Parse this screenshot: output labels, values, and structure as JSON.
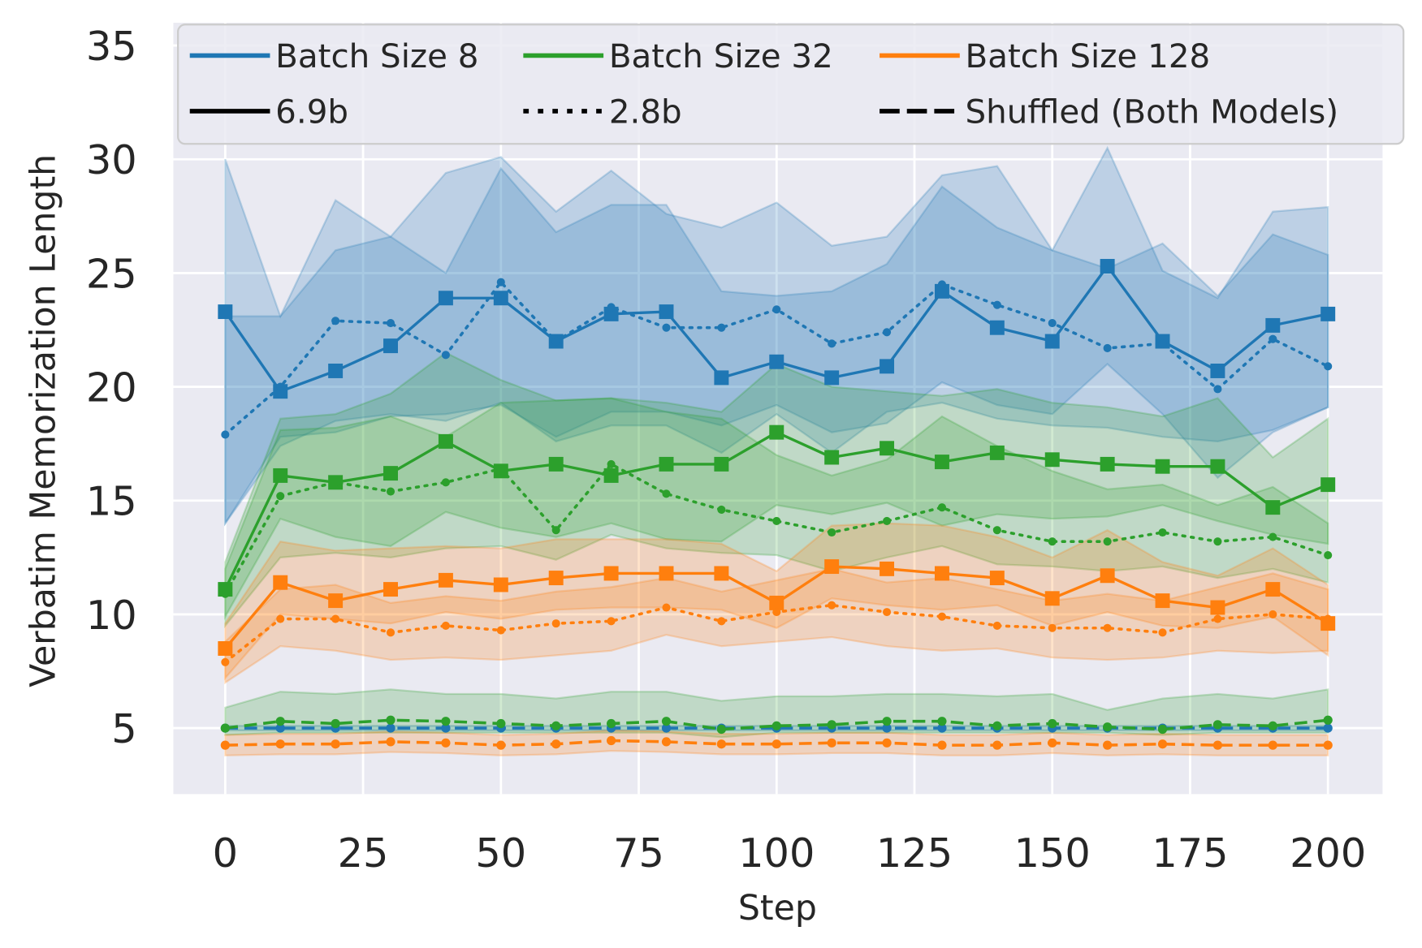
{
  "chart_data": {
    "type": "line",
    "title": "",
    "xlabel": "Step",
    "ylabel": "Verbatim Memorization Length",
    "xlim": [
      -9.4,
      209.9
    ],
    "ylim": [
      2.1,
      36
    ],
    "xticks": [
      "0",
      "25",
      "50",
      "75",
      "100",
      "125",
      "150",
      "175",
      "200"
    ],
    "yticks": [
      "5",
      "10",
      "15",
      "20",
      "25",
      "30",
      "35"
    ],
    "grid": true,
    "background": "#eaeaf2",
    "legend_position": "top",
    "legend": {
      "colors": [
        {
          "label": "Batch Size 8",
          "color": "#1f77b4"
        },
        {
          "label": "Batch Size 32",
          "color": "#2ca02c"
        },
        {
          "label": "Batch Size 128",
          "color": "#ff7f0e"
        }
      ],
      "styles": [
        {
          "label": "6.9b",
          "style": "solid"
        },
        {
          "label": "2.8b",
          "style": "dotted"
        },
        {
          "label": "Shuffled (Both Models)",
          "style": "dashed"
        }
      ]
    },
    "x": [
      0,
      10,
      20,
      30,
      40,
      50,
      60,
      70,
      80,
      90,
      100,
      110,
      120,
      130,
      140,
      150,
      160,
      170,
      180,
      190,
      200
    ],
    "series": [
      {
        "batch": "Batch Size 8",
        "model": "6.9b",
        "color": "#1f77b4",
        "style": "solid",
        "marker": "square",
        "values": [
          23.3,
          19.8,
          20.7,
          21.8,
          23.9,
          23.9,
          22.0,
          23.2,
          23.3,
          20.4,
          21.1,
          20.4,
          20.9,
          24.2,
          22.6,
          22.0,
          25.3,
          22.0,
          20.7,
          22.7,
          23.2
        ],
        "upper": [
          23.1,
          23.1,
          26,
          26.6,
          25,
          29.6,
          26.8,
          28,
          28,
          24.2,
          24,
          24.2,
          25.4,
          28.8,
          27,
          26,
          25.2,
          26.3,
          24,
          26.7,
          25.8
        ],
        "lower": [
          14,
          17.8,
          18,
          18.7,
          18.8,
          19.2,
          17.8,
          18.9,
          18.9,
          18.3,
          19.2,
          18,
          18.4,
          20.2,
          19.2,
          18.8,
          21,
          18.8,
          16,
          18,
          19.1
        ]
      },
      {
        "batch": "Batch Size 8",
        "model": "2.8b",
        "color": "#1f77b4",
        "style": "dotted",
        "marker": "circle",
        "values": [
          17.9,
          20.0,
          22.9,
          22.8,
          21.4,
          24.6,
          22.0,
          23.5,
          22.6,
          22.6,
          23.4,
          21.9,
          22.4,
          24.5,
          23.6,
          22.8,
          21.7,
          21.9,
          19.9,
          22.1,
          20.9
        ],
        "upper": [
          30,
          23.1,
          28.2,
          26.6,
          29.4,
          30.1,
          27.7,
          29.5,
          27.6,
          27,
          28.1,
          26.2,
          26.6,
          29.3,
          29.7,
          26,
          30.5,
          25.1,
          23.9,
          27.7,
          27.9
        ],
        "lower": [
          14,
          17.4,
          18.5,
          18.8,
          18.5,
          19.3,
          17.6,
          18.3,
          18.3,
          17.1,
          18.8,
          17.1,
          18.9,
          19.3,
          18.6,
          18.3,
          18.2,
          17.8,
          17.6,
          18.1,
          19.1
        ]
      },
      {
        "batch": "Batch Size 32",
        "model": "6.9b",
        "color": "#2ca02c",
        "style": "solid",
        "marker": "square",
        "values": [
          11.1,
          16.1,
          15.8,
          16.2,
          17.6,
          16.3,
          16.6,
          16.1,
          16.6,
          16.6,
          18.0,
          16.9,
          17.3,
          16.7,
          17.1,
          16.8,
          16.6,
          16.5,
          16.5,
          14.7,
          15.7
        ],
        "upper": [
          12.3,
          18.6,
          18.8,
          19.7,
          21.5,
          20.3,
          19.4,
          19.5,
          19.3,
          18.9,
          21,
          20,
          19.8,
          19.6,
          19.9,
          19.3,
          19.1,
          18.7,
          19.5,
          16.9,
          18.6
        ],
        "lower": [
          9.9,
          14.2,
          13.4,
          13,
          14.5,
          13.8,
          13.4,
          14,
          13.3,
          13.2,
          14.8,
          14.4,
          14.9,
          13.9,
          14.4,
          14.2,
          14.3,
          14.8,
          14.1,
          13.5,
          13.1
        ]
      },
      {
        "batch": "Batch Size 32",
        "model": "2.8b",
        "color": "#2ca02c",
        "style": "dotted",
        "marker": "circle",
        "values": [
          10.9,
          15.2,
          15.8,
          15.4,
          15.8,
          16.4,
          13.7,
          16.6,
          15.3,
          14.6,
          14.1,
          13.6,
          14.1,
          14.7,
          13.7,
          13.2,
          13.2,
          13.6,
          13.2,
          13.4,
          12.6
        ],
        "upper": [
          12,
          18.1,
          18.2,
          18.7,
          17.8,
          19.3,
          19.4,
          19.5,
          18.9,
          18.6,
          17,
          16.1,
          16.8,
          18.7,
          17.4,
          16.3,
          15.5,
          15.7,
          14.8,
          15.6,
          14
        ],
        "lower": [
          9.5,
          12.5,
          12.7,
          12.5,
          12.9,
          13,
          12.4,
          13.5,
          12.9,
          12.7,
          12.6,
          11.9,
          12.5,
          13,
          12.2,
          12.1,
          11.9,
          12.1,
          11.6,
          12,
          11.4
        ]
      },
      {
        "batch": "Batch Size 128",
        "model": "6.9b",
        "color": "#ff7f0e",
        "style": "solid",
        "marker": "square",
        "values": [
          8.5,
          11.4,
          10.6,
          11.1,
          11.5,
          11.3,
          11.6,
          11.8,
          11.8,
          11.8,
          10.5,
          12.1,
          12.0,
          11.8,
          11.6,
          10.7,
          11.7,
          10.6,
          10.3,
          11.1,
          9.6
        ],
        "upper": [
          9.6,
          13.2,
          12.8,
          12.9,
          13,
          12.9,
          13.3,
          13.3,
          13.3,
          13.1,
          11.9,
          13.9,
          14,
          13.9,
          13.4,
          12.5,
          13.7,
          12.3,
          11.7,
          12.9,
          11.3
        ],
        "lower": [
          7.2,
          10,
          9.8,
          9.6,
          10.1,
          9.8,
          10.2,
          10.3,
          10.3,
          10.2,
          9.4,
          10.7,
          10.4,
          10.2,
          10.4,
          9.5,
          10.1,
          9.5,
          9.4,
          9.9,
          8.2
        ]
      },
      {
        "batch": "Batch Size 128",
        "model": "2.8b",
        "color": "#ff7f0e",
        "style": "dotted",
        "marker": "circle",
        "values": [
          7.9,
          9.8,
          9.8,
          9.2,
          9.5,
          9.3,
          9.6,
          9.7,
          10.3,
          9.7,
          10.1,
          10.4,
          10.1,
          9.9,
          9.5,
          9.4,
          9.4,
          9.2,
          9.8,
          10.0,
          9.8
        ],
        "upper": [
          8.8,
          11.1,
          11.3,
          10.5,
          10.8,
          10.6,
          11,
          11.2,
          11.6,
          11,
          11.5,
          12,
          11.4,
          11.6,
          11.1,
          10.6,
          10.9,
          10.6,
          11.2,
          11.8,
          11.1
        ],
        "lower": [
          7,
          8.6,
          8.4,
          8,
          8.1,
          8,
          8.2,
          8.4,
          9.1,
          8.6,
          8.8,
          9,
          8.6,
          8.4,
          8.5,
          8.1,
          8,
          8.1,
          8.4,
          8.3,
          8.4
        ]
      },
      {
        "batch": "Batch Size 8",
        "model": "Shuffled",
        "color": "#1f77b4",
        "style": "dashed",
        "marker": "circle",
        "values": [
          5.0,
          5.0,
          5.0,
          5.0,
          5.0,
          5.0,
          5.0,
          5.0,
          5.0,
          5.0,
          5.0,
          5.0,
          5.0,
          5.0,
          5.0,
          5.0,
          5.0,
          5.0,
          5.0,
          5.0,
          5.0
        ],
        "upper": [
          5.1,
          5.1,
          5.1,
          5.1,
          5.1,
          5.1,
          5.1,
          5.1,
          5.1,
          5.1,
          5.1,
          5.1,
          5.1,
          5.1,
          5.1,
          5.1,
          5.1,
          5.1,
          5.1,
          5.1,
          5.1
        ],
        "lower": [
          4.9,
          4.9,
          4.9,
          4.9,
          4.9,
          4.9,
          4.9,
          4.9,
          4.9,
          4.9,
          4.9,
          4.9,
          4.9,
          4.9,
          4.9,
          4.9,
          4.9,
          4.9,
          4.9,
          4.9,
          4.9
        ]
      },
      {
        "batch": "Batch Size 32",
        "model": "Shuffled",
        "color": "#2ca02c",
        "style": "dashed",
        "marker": "circle",
        "values": [
          5.0,
          5.3,
          5.2,
          5.35,
          5.3,
          5.2,
          5.1,
          5.2,
          5.3,
          4.95,
          5.1,
          5.15,
          5.3,
          5.3,
          5.1,
          5.2,
          5.05,
          4.95,
          5.15,
          5.1,
          5.35
        ],
        "upper": [
          5.9,
          6.6,
          6.5,
          6.7,
          6.5,
          6.5,
          6.3,
          6.6,
          6.6,
          6.2,
          6.4,
          6.4,
          6.5,
          6.5,
          6.4,
          6.5,
          5.8,
          6.3,
          6.5,
          6.3,
          6.7
        ],
        "lower": [
          4.7,
          4.8,
          4.8,
          4.8,
          4.8,
          4.8,
          4.8,
          4.8,
          4.8,
          4.6,
          4.8,
          4.8,
          4.8,
          4.8,
          4.8,
          4.8,
          4.8,
          4.7,
          4.8,
          4.8,
          4.8
        ]
      },
      {
        "batch": "Batch Size 128",
        "model": "Shuffled",
        "color": "#ff7f0e",
        "style": "dashed",
        "marker": "circle",
        "values": [
          4.25,
          4.3,
          4.3,
          4.4,
          4.35,
          4.25,
          4.3,
          4.45,
          4.4,
          4.3,
          4.3,
          4.35,
          4.35,
          4.25,
          4.25,
          4.35,
          4.25,
          4.3,
          4.25,
          4.25,
          4.25
        ],
        "upper": [
          4.7,
          4.75,
          4.75,
          4.85,
          4.8,
          4.7,
          4.75,
          4.9,
          4.85,
          4.75,
          4.75,
          4.8,
          4.8,
          4.7,
          4.7,
          4.8,
          4.7,
          4.75,
          4.7,
          4.7,
          4.7
        ],
        "lower": [
          3.8,
          3.85,
          3.85,
          3.95,
          3.9,
          3.8,
          3.85,
          4.0,
          3.95,
          3.85,
          3.85,
          3.9,
          3.9,
          3.8,
          3.8,
          3.9,
          3.8,
          3.85,
          3.8,
          3.8,
          3.8
        ]
      }
    ]
  }
}
